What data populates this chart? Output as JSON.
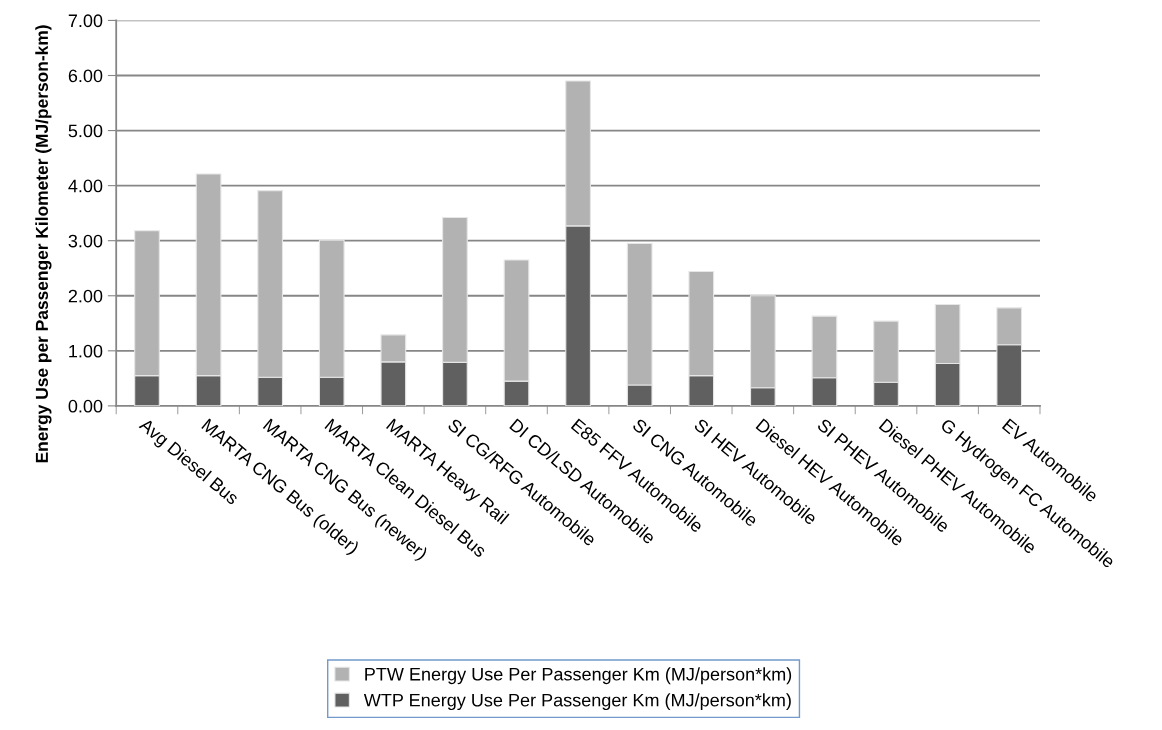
{
  "chart_data": {
    "type": "bar",
    "stacked": true,
    "ylabel": "Energy Use per Passenger Kilometer (MJ/person-km)",
    "categories": [
      "Avg Diesel Bus",
      "MARTA CNG Bus (older)",
      "MARTA CNG Bus (newer)",
      "MARTA Clean Diesel Bus",
      "MARTA Heavy Rail",
      "SI CG/RFG Automobile",
      "DI CD/LSD Automobile",
      "E85 FFV Automobile",
      "SI CNG Automobile",
      "SI HEV Automobile",
      "Diesel HEV Automobile",
      "SI PHEV Automobile",
      "Diesel PHEV Automobile",
      "G Hydrogen FC Automobile",
      "EV Automobile"
    ],
    "series": [
      {
        "name": "WTP Energy Use Per Passenger Km (MJ/person*km)",
        "color": "#606060",
        "values": [
          0.55,
          0.55,
          0.52,
          0.52,
          0.8,
          0.79,
          0.45,
          3.27,
          0.38,
          0.55,
          0.33,
          0.51,
          0.43,
          0.77,
          1.11
        ]
      },
      {
        "name": "PTW Energy Use Per Passenger Km (MJ/person*km)",
        "color": "#b2b2b2",
        "values": [
          2.63,
          3.66,
          3.39,
          2.49,
          0.49,
          2.63,
          2.2,
          2.63,
          2.57,
          1.89,
          1.67,
          1.12,
          1.11,
          1.07,
          0.67
        ]
      }
    ],
    "ylim": [
      0,
      7
    ],
    "yticks": [
      {
        "value": 0,
        "label": "0.00"
      },
      {
        "value": 1,
        "label": "1.00"
      },
      {
        "value": 2,
        "label": "2.00"
      },
      {
        "value": 3,
        "label": "3.00"
      },
      {
        "value": 4,
        "label": "4.00"
      },
      {
        "value": 5,
        "label": "5.00"
      },
      {
        "value": 6,
        "label": "6.00"
      },
      {
        "value": 7,
        "label": "7.00"
      }
    ],
    "grid": "y",
    "legend": "bottom"
  }
}
